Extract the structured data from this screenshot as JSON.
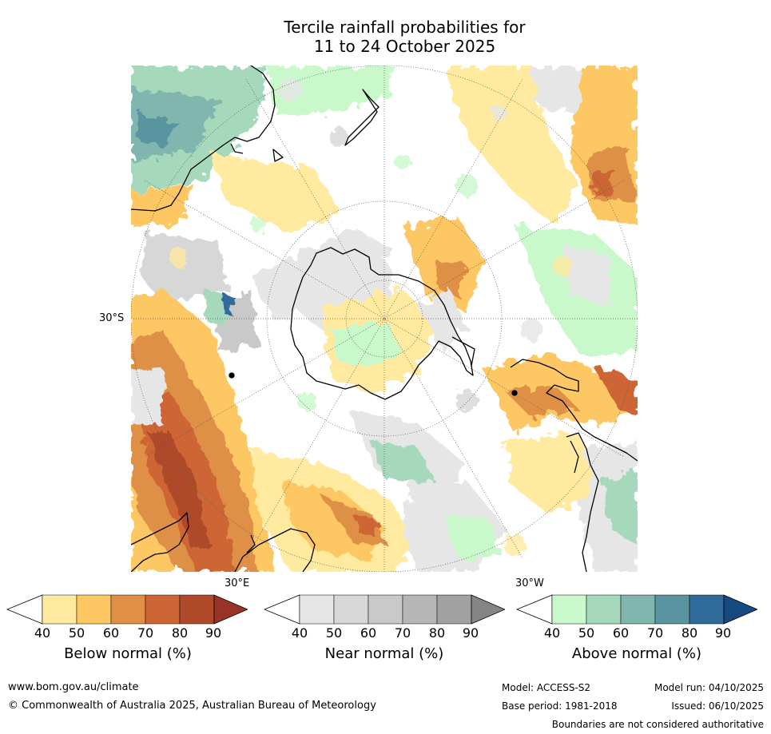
{
  "title": {
    "line1": "Tercile rainfall probabilities for",
    "line2": "11 to 24 October 2025"
  },
  "axis_labels": {
    "lat": "30°S",
    "lon_left": "30°E",
    "lon_right": "30°W"
  },
  "legends": [
    {
      "name": "Below normal (%)",
      "ticks": [
        "40",
        "50",
        "60",
        "70",
        "80",
        "90"
      ],
      "colors": [
        "#ffeaa0",
        "#fdc863",
        "#df9046",
        "#cd6534",
        "#ae4a2a",
        "#973426"
      ]
    },
    {
      "name": "Near normal (%)",
      "ticks": [
        "40",
        "50",
        "60",
        "70",
        "80",
        "90"
      ],
      "colors": [
        "#e6e6e6",
        "#d7d7d7",
        "#c9c9c9",
        "#b6b6b6",
        "#a1a1a1",
        "#858585"
      ]
    },
    {
      "name": "Above normal (%)",
      "ticks": [
        "40",
        "50",
        "60",
        "70",
        "80",
        "90"
      ],
      "colors": [
        "#c9f8cb",
        "#a6d9bc",
        "#80b6ad",
        "#5a94a0",
        "#306a9b",
        "#164b82"
      ]
    }
  ],
  "footer": {
    "url": "www.bom.gov.au/climate",
    "copyright": "© Commonwealth of Australia 2025, Australian Bureau of Meteorology",
    "model": "Model: ACCESS-S2",
    "model_run": "Model run: 04/10/2025",
    "base_period": "Base period: 1981-2018",
    "issued": "Issued: 06/10/2025",
    "disclaimer": "Boundaries are not considered authoritative"
  },
  "colors": {
    "coastline": "#000000",
    "gridline": "#555555"
  }
}
